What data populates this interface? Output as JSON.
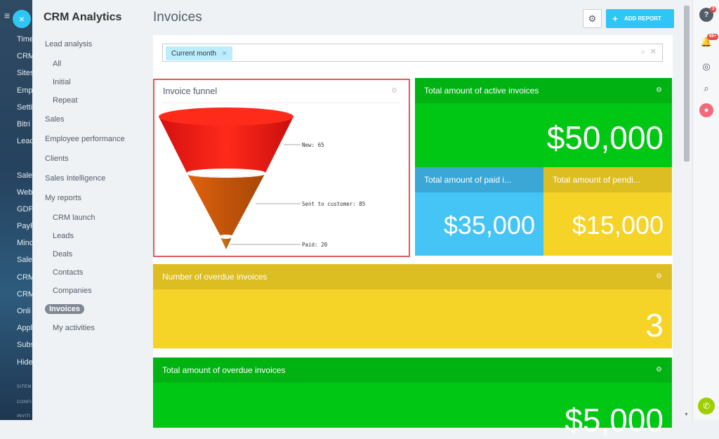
{
  "left_strip": {
    "items": [
      "Time",
      "CRM",
      "Sites",
      "Emp",
      "Setti",
      "Bitri",
      "Leac",
      "",
      "Sales",
      "Web",
      "GDP",
      "PayP",
      "Minc",
      "Sale",
      "CRM",
      "CRM",
      "Onli",
      "Appl",
      "Subs",
      "Hide"
    ],
    "footer": [
      "SITEM",
      "CONFI",
      "INVITI"
    ]
  },
  "nav": {
    "title": "CRM Analytics",
    "items": [
      "Lead analysis",
      "All",
      "Initial",
      "Repeat",
      "Sales",
      "Employee performance",
      "Clients",
      "Sales Intelligence",
      "My reports",
      "CRM launch",
      "Leads",
      "Deals",
      "Contacts",
      "Companies",
      "Invoices",
      "My activities"
    ]
  },
  "header": {
    "title": "Invoices",
    "add_report": "ADD REPORT"
  },
  "filter": {
    "tag": "Current month"
  },
  "funnel": {
    "title": "Invoice funnel",
    "labels": [
      "New: 65",
      "Sent to customer: 85",
      "Paid: 20"
    ]
  },
  "tiles": {
    "active": {
      "label": "Total amount of active invoices",
      "value": "$50,000"
    },
    "paid": {
      "label": "Total amount of paid i...",
      "value": "$35,000"
    },
    "pending": {
      "label": "Total amount of pendi...",
      "value": "$15,000"
    },
    "overdue_count": {
      "label": "Number of overdue invoices",
      "value": "3"
    },
    "overdue_amount": {
      "label": "Total amount of overdue invoices",
      "value": "$5,000"
    }
  },
  "right_bar": {
    "help_badge": "3",
    "notif_badge": "99+"
  },
  "colors": {
    "green": "#00c614",
    "blue": "#2fb8ee",
    "yellow": "#f5d327",
    "accent": "#2fc6f6"
  }
}
